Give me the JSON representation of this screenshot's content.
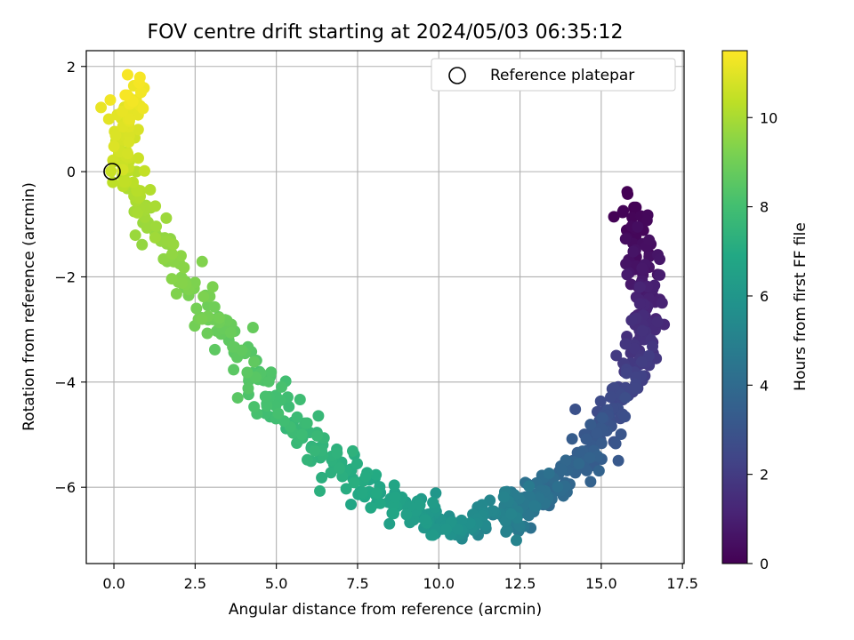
{
  "chart_data": {
    "type": "scatter",
    "title": "FOV centre drift starting at 2024/05/03 06:35:12",
    "xlabel": "Angular distance from reference (arcmin)",
    "ylabel": "Rotation from reference (arcmin)",
    "colorbar_label": "Hours from first FF file",
    "xlim": [
      -0.85,
      17.55
    ],
    "ylim": [
      -7.45,
      2.3
    ],
    "clim": [
      0,
      11.5
    ],
    "xticks": [
      0.0,
      2.5,
      5.0,
      7.5,
      10.0,
      12.5,
      15.0,
      17.5
    ],
    "xtick_labels": [
      "0.0",
      "2.5",
      "5.0",
      "7.5",
      "10.0",
      "12.5",
      "15.0",
      "17.5"
    ],
    "yticks": [
      -6,
      -4,
      -2,
      0,
      2
    ],
    "ytick_labels": [
      "−6",
      "−4",
      "−2",
      "0",
      "2"
    ],
    "cticks": [
      0,
      2,
      4,
      6,
      8,
      10
    ],
    "ctick_labels": [
      "0",
      "2",
      "4",
      "6",
      "8",
      "10"
    ],
    "colormap": "viridis",
    "grid": true,
    "legend": {
      "label": "Reference platepar",
      "placement": "upper-right"
    },
    "reference_point": {
      "x": 0.0,
      "y": 0.0
    },
    "point_count": 700,
    "trajectory": {
      "description": "points sorted by hours; the drift path (x, y) in arcmin at the given hours",
      "hours": [
        0,
        0.5,
        1.0,
        1.5,
        2.0,
        2.5,
        3.0,
        3.5,
        4.0,
        4.5,
        5.0,
        5.5,
        6.0,
        6.5,
        7.0,
        7.5,
        8.0,
        8.5,
        9.0,
        9.5,
        10.0,
        10.5,
        11.0,
        11.4
      ],
      "x": [
        15.9,
        16.3,
        16.4,
        16.3,
        16.1,
        15.6,
        15.0,
        14.4,
        13.5,
        12.8,
        12.0,
        11.0,
        10.0,
        8.8,
        7.6,
        6.3,
        5.1,
        4.0,
        2.9,
        1.7,
        0.8,
        0.3,
        0.35,
        0.55
      ],
      "y": [
        -0.6,
        -1.6,
        -2.4,
        -3.1,
        -3.7,
        -4.3,
        -4.9,
        -5.5,
        -6.0,
        -6.3,
        -6.5,
        -6.7,
        -6.7,
        -6.45,
        -6.0,
        -5.2,
        -4.4,
        -3.6,
        -2.7,
        -1.7,
        -0.6,
        0.2,
        0.9,
        1.7
      ],
      "spread_x": 0.28,
      "spread_y": 0.18
    }
  }
}
